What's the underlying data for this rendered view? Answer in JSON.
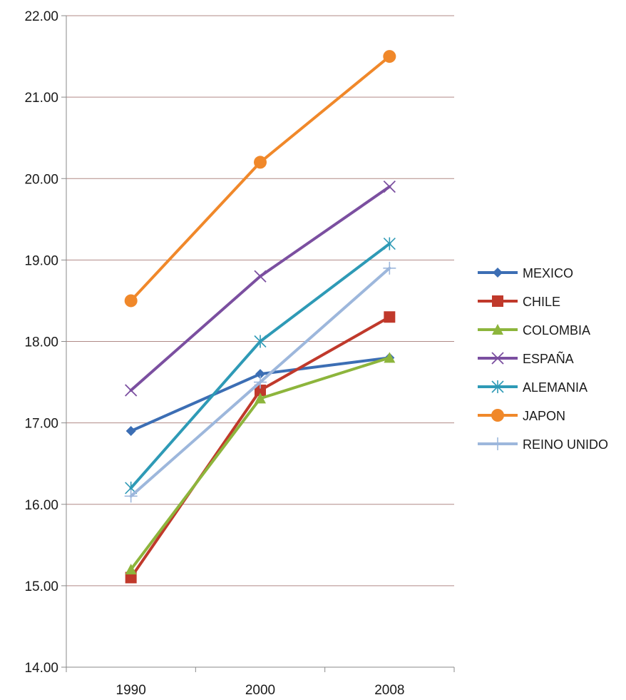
{
  "chart_data": {
    "type": "line",
    "title": "",
    "xlabel": "",
    "ylabel": "",
    "categories": [
      "1990",
      "2000",
      "2008"
    ],
    "ylim": [
      14.0,
      22.0
    ],
    "yticks": [
      14.0,
      15.0,
      16.0,
      17.0,
      18.0,
      19.0,
      20.0,
      21.0,
      22.0
    ],
    "ytick_labels": [
      "14.00",
      "15.00",
      "16.00",
      "17.00",
      "18.00",
      "19.00",
      "20.00",
      "21.00",
      "22.00"
    ],
    "grid": "horizontal",
    "legend_position": "right",
    "series": [
      {
        "name": "MEXICO",
        "values": [
          16.9,
          17.6,
          17.8
        ],
        "color": "#3c6eb4",
        "marker": "diamond"
      },
      {
        "name": "CHILE",
        "values": [
          15.1,
          17.4,
          18.3
        ],
        "color": "#c0392b",
        "marker": "square"
      },
      {
        "name": "COLOMBIA",
        "values": [
          15.2,
          17.3,
          17.8
        ],
        "color": "#8db53c",
        "marker": "triangle"
      },
      {
        "name": "ESPAÑA",
        "values": [
          17.4,
          18.8,
          19.9
        ],
        "color": "#7b4fa0",
        "marker": "x"
      },
      {
        "name": "ALEMANIA",
        "values": [
          16.2,
          18.0,
          19.2
        ],
        "color": "#2e9ab6",
        "marker": "asterisk"
      },
      {
        "name": "JAPON",
        "values": [
          18.5,
          20.2,
          21.5
        ],
        "color": "#f0882a",
        "marker": "circle"
      },
      {
        "name": "REINO UNIDO",
        "values": [
          16.1,
          17.5,
          18.9
        ],
        "color": "#9db7dc",
        "marker": "plus"
      }
    ]
  }
}
